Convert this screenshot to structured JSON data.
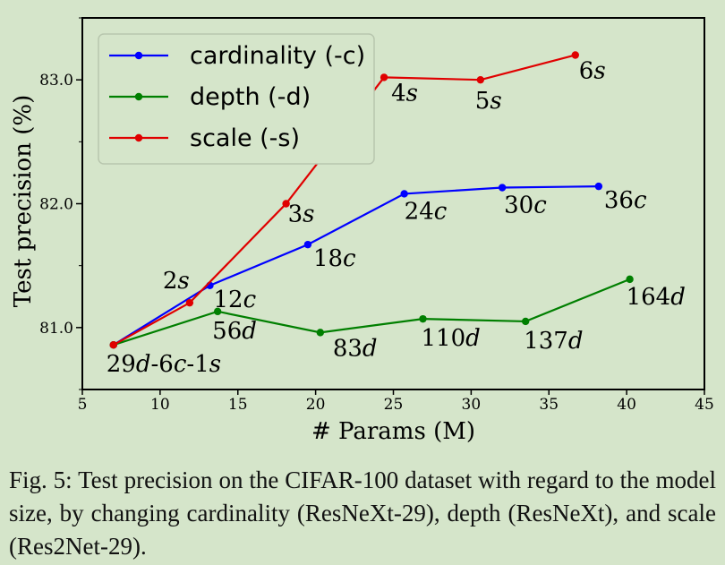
{
  "chart_data": {
    "type": "line",
    "xlabel": "# Params (M)",
    "ylabel": "Test precision (%)",
    "xlim": [
      5,
      45
    ],
    "ylim": [
      80.5,
      83.5
    ],
    "xticks": [
      5,
      10,
      15,
      20,
      25,
      30,
      35,
      40,
      45
    ],
    "yticks": [
      81.0,
      82.0,
      83.0
    ],
    "xtick_labels": [
      "5",
      "10",
      "15",
      "20",
      "25",
      "30",
      "35",
      "40",
      "45"
    ],
    "ytick_labels": [
      "81.0",
      "82.0",
      "83.0"
    ],
    "grid": false,
    "legend": "top-left",
    "series": [
      {
        "name": "cardinality (-c)",
        "color": "#0000ff",
        "x": [
          7.0,
          13.2,
          19.5,
          25.7,
          32.0,
          38.2
        ],
        "y": [
          80.86,
          81.34,
          81.67,
          82.08,
          82.13,
          82.14
        ],
        "labels": [
          "",
          "12c",
          "18c",
          "24c",
          "30c",
          "36c"
        ]
      },
      {
        "name": "depth (-d)",
        "color": "#007f00",
        "x": [
          7.0,
          13.7,
          20.3,
          26.9,
          33.5,
          40.2
        ],
        "y": [
          80.86,
          81.13,
          80.96,
          81.07,
          81.05,
          81.39
        ],
        "labels": [
          "",
          "56d",
          "83d",
          "110d",
          "137d",
          "164d"
        ]
      },
      {
        "name": "scale (-s)",
        "color": "#e00000",
        "x": [
          7.0,
          11.9,
          18.1,
          24.4,
          30.6,
          36.7
        ],
        "y": [
          80.86,
          81.2,
          82.0,
          83.02,
          83.0,
          83.2
        ],
        "labels": [
          "",
          "2s",
          "3s",
          "4s",
          "5s",
          "6s"
        ]
      }
    ],
    "origin_label": "29d-6c-1s"
  },
  "caption": "Fig. 5: Test precision on the CIFAR-100 dataset with regard to the model size, by changing cardinality (ResNeXt-29), depth (ResNeXt), and scale (Res2Net-29)."
}
